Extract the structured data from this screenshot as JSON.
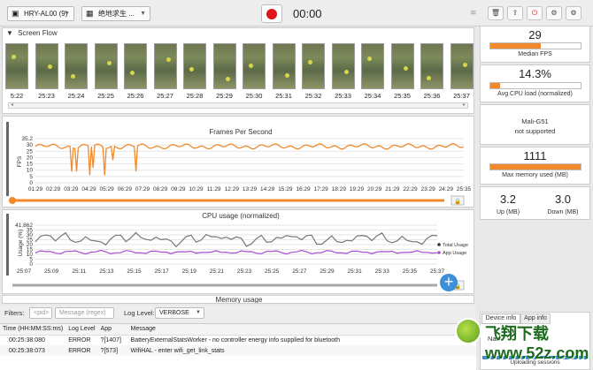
{
  "toolbar": {
    "device": "HRY-AL00 (9)",
    "app": "绝地求生 ...",
    "timer": "00:00"
  },
  "screen_flow": {
    "title": "Screen Flow",
    "timestamps": [
      "5:22",
      "25:23",
      "25:24",
      "25:25",
      "25:26",
      "25:27",
      "25:28",
      "25:29",
      "25:30",
      "25:31",
      "25:32",
      "25:33",
      "25:34",
      "25:35",
      "25:36",
      "25:37"
    ]
  },
  "fps_chart": {
    "title": "Frames Per Second",
    "ylabel": "FPS",
    "yticks": [
      "35.2",
      "30",
      "25",
      "20",
      "15",
      "10",
      "5",
      "0"
    ],
    "xticks": [
      "01:29",
      "02:29",
      "03:29",
      "04:29",
      "05:29",
      "06:29",
      "07:29",
      "08:29",
      "09:29",
      "10:29",
      "11:29",
      "12:29",
      "13:29",
      "14:29",
      "15:29",
      "16:29",
      "17:29",
      "18:29",
      "19:29",
      "20:29",
      "21:29",
      "22:29",
      "23:29",
      "24:29",
      "25:35"
    ]
  },
  "cpu_chart": {
    "title": "CPU usage (normalized)",
    "ylabel": "Usage (%)",
    "yticks": [
      "41.862",
      "35",
      "30",
      "25",
      "20",
      "15",
      "10",
      "5",
      "0"
    ],
    "xticks": [
      "25:07",
      "25:09",
      "25:11",
      "25:13",
      "25:15",
      "25:17",
      "25:19",
      "25:21",
      "25:23",
      "25:25",
      "25:27",
      "25:29",
      "25:31",
      "25:33",
      "25:35",
      "25:37"
    ],
    "legend": [
      "Total Usage",
      "App Usage"
    ],
    "total_color": "#777777",
    "app_color": "#a64bd6"
  },
  "memory_title": "Memory usage",
  "filters": {
    "label": "Filters:",
    "pid_placeholder": "<pid>",
    "message_placeholder": "Message (regex)",
    "log_level_label": "Log Level:",
    "log_level_value": "VERBOSE"
  },
  "log": {
    "headers": [
      "Time (HH:MM:SS:ms)",
      "Log Level",
      "App",
      "Message"
    ],
    "rows": [
      [
        "00:25:38:080",
        "ERROR",
        "?[1407]",
        "BatteryExternalStatsWorker - no controller energy info supplied for bluetooth"
      ],
      [
        "00:25:38:073",
        "ERROR",
        "?[573]",
        "WifiHAL - enter wifi_get_link_stats"
      ]
    ]
  },
  "stats": {
    "fps": {
      "value": "29",
      "label": "Median FPS",
      "fill": 0.56
    },
    "cpu": {
      "value": "14.3%",
      "label": "Avg CPU load (normalized)",
      "fill": 0.11
    },
    "gpu": {
      "line1": "Mali-G51",
      "line2": "not supported"
    },
    "memory": {
      "value": "1111",
      "label": "Max memory used (MB)",
      "fill": 1.0
    },
    "up": {
      "value": "3.2",
      "label": "Up (MB)"
    },
    "down": {
      "value": "3.0",
      "label": "Down (MB)"
    }
  },
  "tabs": [
    "Device info",
    "App info"
  ],
  "device_info_partial": "Nam",
  "uploading_label": "Uploading sessions",
  "watermark": "飞翔下载 www.52z.com",
  "colors": {
    "accent": "#f08a2c",
    "record": "#e0151b",
    "progress_blue": "#3d8fd8"
  }
}
